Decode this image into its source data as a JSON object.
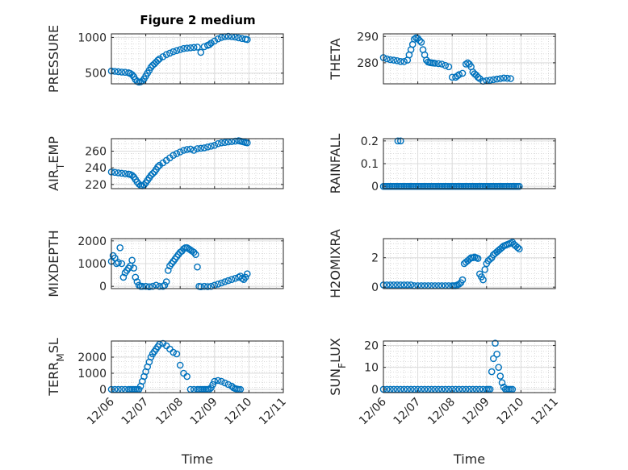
{
  "figure_title": "Figure 2 medium",
  "x_tick_labels": [
    "12/06",
    "12/07",
    "12/08",
    "12/09",
    "12/10",
    "12/11"
  ],
  "marker_color": "#0072BD",
  "chart_data": [
    {
      "type": "scatter",
      "title": "Figure 2 medium",
      "ylabel": "PRESSURE",
      "xlabel": "",
      "x_unit": "days",
      "xlim": [
        "12/06",
        "12/11"
      ],
      "ylim": [
        350,
        1050
      ],
      "yticks": [
        500,
        1000
      ],
      "ytick_labels": [
        "500",
        "1000"
      ],
      "grid": "on, minor dotted",
      "x": [
        0,
        0.1,
        0.2,
        0.3,
        0.4,
        0.5,
        0.55,
        0.6,
        0.65,
        0.7,
        0.75,
        0.8,
        0.85,
        0.9,
        0.95,
        1.0,
        1.05,
        1.1,
        1.15,
        1.2,
        1.25,
        1.3,
        1.35,
        1.4,
        1.5,
        1.6,
        1.7,
        1.8,
        1.9,
        2.0,
        2.1,
        2.2,
        2.3,
        2.4,
        2.5,
        2.6,
        2.7,
        2.8,
        2.85,
        2.9,
        3.0,
        3.1,
        3.2,
        3.3,
        3.4,
        3.5,
        3.6,
        3.7,
        3.8,
        3.9,
        3.95
      ],
      "y": [
        530,
        525,
        520,
        515,
        512,
        505,
        495,
        480,
        450,
        410,
        385,
        375,
        378,
        390,
        420,
        460,
        500,
        540,
        580,
        610,
        630,
        655,
        680,
        700,
        730,
        760,
        780,
        800,
        815,
        830,
        845,
        850,
        855,
        860,
        865,
        790,
        870,
        890,
        900,
        920,
        950,
        980,
        1000,
        1010,
        1015,
        1010,
        1005,
        995,
        985,
        975,
        970
      ]
    },
    {
      "type": "scatter",
      "ylabel": "THETA",
      "xlabel": "",
      "xlim": [
        "12/06",
        "12/11"
      ],
      "ylim": [
        272,
        291
      ],
      "yticks": [
        280,
        290
      ],
      "ytick_labels": [
        "280",
        "290"
      ],
      "grid": "on, minor dotted",
      "x": [
        0,
        0.1,
        0.2,
        0.3,
        0.4,
        0.5,
        0.6,
        0.7,
        0.75,
        0.8,
        0.85,
        0.9,
        0.95,
        1.0,
        1.05,
        1.1,
        1.15,
        1.2,
        1.25,
        1.3,
        1.35,
        1.4,
        1.45,
        1.5,
        1.6,
        1.7,
        1.8,
        1.9,
        2.0,
        2.1,
        2.15,
        2.2,
        2.3,
        2.4,
        2.45,
        2.5,
        2.55,
        2.6,
        2.65,
        2.7,
        2.75,
        2.8,
        2.9,
        3.0,
        3.1,
        3.2,
        3.3,
        3.4,
        3.5,
        3.6,
        3.7
      ],
      "y": [
        282,
        281.5,
        281.2,
        281,
        280.8,
        280.5,
        280.5,
        281,
        283,
        285,
        287,
        289,
        289.5,
        289.3,
        288.5,
        287.8,
        285,
        283,
        281,
        280.3,
        280.1,
        280,
        279.9,
        279.8,
        279.7,
        279.5,
        279,
        278.5,
        274.5,
        274.5,
        275,
        275.5,
        276,
        279.5,
        280,
        279.5,
        278.5,
        276.5,
        275.8,
        275.3,
        274.5,
        274,
        273,
        273.2,
        273.4,
        273.6,
        273.8,
        274,
        274.2,
        274.1,
        274
      ]
    },
    {
      "type": "scatter",
      "ylabel": "AIR_TEMP",
      "xlabel": "",
      "xlim": [
        "12/06",
        "12/11"
      ],
      "ylim": [
        215,
        275
      ],
      "yticks": [
        220,
        240,
        260
      ],
      "ytick_labels": [
        "220",
        "240",
        "260"
      ],
      "grid": "on, minor dotted",
      "x": [
        0,
        0.1,
        0.2,
        0.3,
        0.4,
        0.5,
        0.55,
        0.6,
        0.65,
        0.7,
        0.75,
        0.8,
        0.85,
        0.9,
        0.95,
        1.0,
        1.05,
        1.1,
        1.15,
        1.2,
        1.25,
        1.3,
        1.35,
        1.4,
        1.5,
        1.6,
        1.7,
        1.8,
        1.9,
        2.0,
        2.1,
        2.2,
        2.3,
        2.4,
        2.5,
        2.6,
        2.7,
        2.8,
        2.9,
        3.0,
        3.1,
        3.2,
        3.3,
        3.4,
        3.5,
        3.6,
        3.7,
        3.75,
        3.8,
        3.85,
        3.9,
        3.95
      ],
      "y": [
        235,
        234.5,
        234,
        233.5,
        233,
        232.5,
        232,
        231,
        229,
        226,
        223,
        220.5,
        219,
        218.5,
        219.5,
        222,
        225,
        228,
        231,
        233,
        235,
        238,
        241,
        243,
        246,
        249,
        252,
        255,
        257,
        259,
        261,
        262,
        262.5,
        261,
        263,
        263.5,
        264,
        265,
        266,
        267,
        269,
        270,
        270.5,
        271,
        271.5,
        272,
        272.5,
        272,
        271.5,
        271,
        270.5,
        270
      ]
    },
    {
      "type": "scatter",
      "ylabel": "RAINFALL",
      "xlabel": "",
      "xlim": [
        "12/06",
        "12/11"
      ],
      "ylim": [
        -0.01,
        0.21
      ],
      "yticks": [
        0,
        0.1,
        0.2
      ],
      "ytick_labels": [
        "0",
        "0.1",
        "0.2"
      ],
      "grid": "on, minor dotted",
      "x": [
        0,
        0.05,
        0.1,
        0.15,
        0.2,
        0.25,
        0.3,
        0.35,
        0.4,
        0.45,
        0.5,
        0.55,
        0.6,
        0.65,
        0.7,
        0.75,
        0.8,
        0.85,
        0.9,
        0.95,
        1.0,
        1.05,
        1.1,
        1.15,
        1.2,
        1.25,
        1.3,
        1.35,
        1.4,
        1.45,
        1.5,
        1.55,
        1.6,
        1.65,
        1.7,
        1.75,
        1.8,
        1.85,
        1.9,
        1.95,
        2.0,
        2.05,
        2.1,
        2.15,
        2.2,
        2.25,
        2.3,
        2.35,
        2.4,
        2.45,
        2.5,
        2.55,
        2.6,
        2.65,
        2.7,
        2.75,
        2.8,
        2.85,
        2.9,
        2.95,
        3.0,
        3.05,
        3.1,
        3.15,
        3.2,
        3.25,
        3.3,
        3.35,
        3.4,
        3.45,
        3.5,
        3.55,
        3.6,
        3.65,
        3.7,
        3.75,
        3.8,
        3.85,
        3.9,
        3.95,
        0.42,
        0.5
      ],
      "y": [
        0,
        0,
        0,
        0,
        0,
        0,
        0,
        0,
        0,
        0,
        0,
        0,
        0,
        0,
        0,
        0,
        0,
        0,
        0,
        0,
        0,
        0,
        0,
        0,
        0,
        0,
        0,
        0,
        0,
        0,
        0,
        0,
        0,
        0,
        0,
        0,
        0,
        0,
        0,
        0,
        0,
        0,
        0,
        0,
        0,
        0,
        0,
        0,
        0,
        0,
        0,
        0,
        0,
        0,
        0,
        0,
        0,
        0,
        0,
        0,
        0,
        0,
        0,
        0,
        0,
        0,
        0,
        0,
        0,
        0,
        0,
        0,
        0,
        0,
        0,
        0,
        0,
        0,
        0,
        0,
        0.2,
        0.2
      ]
    },
    {
      "type": "scatter",
      "ylabel": "MIXDEPTH",
      "xlabel": "",
      "xlim": [
        "12/06",
        "12/11"
      ],
      "ylim": [
        -100,
        2100
      ],
      "yticks": [
        0,
        1000,
        2000
      ],
      "ytick_labels": [
        "0",
        "1000",
        "2000"
      ],
      "grid": "on, minor dotted",
      "x": [
        0,
        0.05,
        0.1,
        0.15,
        0.2,
        0.25,
        0.3,
        0.35,
        0.4,
        0.45,
        0.5,
        0.55,
        0.6,
        0.65,
        0.7,
        0.75,
        0.8,
        0.85,
        0.9,
        1.0,
        1.1,
        1.2,
        1.3,
        1.4,
        1.5,
        1.55,
        1.6,
        1.65,
        1.7,
        1.75,
        1.8,
        1.85,
        1.9,
        1.95,
        2.0,
        2.05,
        2.1,
        2.15,
        2.2,
        2.25,
        2.3,
        2.35,
        2.4,
        2.45,
        2.5,
        2.55,
        2.6,
        2.7,
        2.8,
        2.9,
        3.0,
        3.1,
        3.2,
        3.3,
        3.4,
        3.5,
        3.6,
        3.7,
        3.75,
        3.8,
        3.85,
        3.9,
        3.95
      ],
      "y": [
        1100,
        1350,
        1250,
        1000,
        1050,
        1700,
        1000,
        400,
        600,
        700,
        800,
        900,
        1150,
        800,
        400,
        200,
        50,
        0,
        0,
        0,
        -20,
        0,
        50,
        0,
        0,
        50,
        200,
        700,
        900,
        1000,
        1100,
        1200,
        1300,
        1400,
        1500,
        1550,
        1650,
        1700,
        1700,
        1650,
        1600,
        1550,
        1500,
        1400,
        850,
        0,
        -20,
        0,
        -10,
        0,
        50,
        100,
        150,
        200,
        250,
        300,
        350,
        400,
        450,
        350,
        300,
        400,
        550
      ]
    },
    {
      "type": "scatter",
      "ylabel": "H2OMIXRA",
      "xlabel": "",
      "xlim": [
        "12/06",
        "12/11"
      ],
      "ylim": [
        -0.1,
        3.3
      ],
      "yticks": [
        0,
        2
      ],
      "ytick_labels": [
        "0",
        "2"
      ],
      "grid": "on, minor dotted",
      "x": [
        0,
        0.1,
        0.2,
        0.3,
        0.4,
        0.5,
        0.6,
        0.7,
        0.8,
        0.9,
        1.0,
        1.1,
        1.2,
        1.3,
        1.4,
        1.5,
        1.6,
        1.7,
        1.8,
        1.9,
        2.0,
        2.05,
        2.1,
        2.15,
        2.2,
        2.25,
        2.3,
        2.35,
        2.4,
        2.45,
        2.5,
        2.55,
        2.6,
        2.65,
        2.7,
        2.75,
        2.8,
        2.85,
        2.9,
        2.95,
        3.0,
        3.05,
        3.1,
        3.15,
        3.2,
        3.25,
        3.3,
        3.35,
        3.4,
        3.45,
        3.5,
        3.55,
        3.6,
        3.65,
        3.7,
        3.75,
        3.8,
        3.85,
        3.9,
        3.95
      ],
      "y": [
        0.15,
        0.15,
        0.15,
        0.15,
        0.15,
        0.15,
        0.15,
        0.15,
        0.15,
        0.1,
        0.1,
        0.1,
        0.1,
        0.1,
        0.1,
        0.1,
        0.1,
        0.1,
        0.1,
        0.1,
        0.1,
        0.1,
        0.1,
        0.15,
        0.2,
        0.3,
        0.5,
        1.6,
        1.7,
        1.8,
        1.9,
        2.0,
        2.0,
        2.05,
        2.0,
        1.95,
        0.9,
        0.7,
        0.5,
        1.2,
        1.6,
        1.8,
        1.9,
        2.0,
        2.2,
        2.3,
        2.4,
        2.5,
        2.6,
        2.7,
        2.8,
        2.85,
        2.9,
        2.95,
        3.0,
        3.05,
        2.9,
        2.8,
        2.7,
        2.6
      ]
    },
    {
      "type": "scatter",
      "ylabel": "TERR_MSL",
      "xlabel": "Time",
      "xlim": [
        "12/06",
        "12/11"
      ],
      "ylim": [
        -200,
        3000
      ],
      "yticks": [
        0,
        1000,
        2000
      ],
      "ytick_labels": [
        "0",
        "1000",
        "2000"
      ],
      "grid": "on, minor dotted",
      "x": [
        0,
        0.1,
        0.2,
        0.3,
        0.4,
        0.5,
        0.55,
        0.6,
        0.65,
        0.7,
        0.75,
        0.8,
        0.85,
        0.9,
        0.95,
        1.0,
        1.05,
        1.1,
        1.15,
        1.2,
        1.25,
        1.3,
        1.35,
        1.4,
        1.5,
        1.6,
        1.7,
        1.8,
        1.9,
        2.0,
        2.1,
        2.2,
        2.3,
        2.4,
        2.5,
        2.55,
        2.6,
        2.65,
        2.7,
        2.75,
        2.8,
        2.85,
        2.9,
        2.95,
        3.0,
        3.1,
        3.2,
        3.3,
        3.4,
        3.5,
        3.55,
        3.6,
        3.65,
        3.7,
        3.75
      ],
      "y": [
        0,
        0,
        0,
        0,
        0,
        0,
        0,
        0,
        0,
        0,
        0,
        0,
        200,
        500,
        800,
        1100,
        1400,
        1700,
        2000,
        2200,
        2350,
        2500,
        2650,
        2800,
        2850,
        2700,
        2500,
        2300,
        2200,
        1500,
        1000,
        800,
        0,
        0,
        0,
        0,
        0,
        0,
        0,
        0,
        0,
        0,
        100,
        300,
        500,
        550,
        500,
        400,
        300,
        200,
        100,
        50,
        20,
        0,
        0
      ]
    },
    {
      "type": "scatter",
      "ylabel": "SUN_FLUX",
      "xlabel": "Time",
      "xlim": [
        "12/06",
        "12/11"
      ],
      "ylim": [
        -1.5,
        22
      ],
      "yticks": [
        0,
        10,
        20
      ],
      "ytick_labels": [
        "0",
        "10",
        "20"
      ],
      "grid": "on, minor dotted",
      "x": [
        0,
        0.1,
        0.2,
        0.3,
        0.4,
        0.5,
        0.6,
        0.7,
        0.8,
        0.9,
        1.0,
        1.1,
        1.2,
        1.3,
        1.4,
        1.5,
        1.6,
        1.7,
        1.8,
        1.9,
        2.0,
        2.1,
        2.2,
        2.3,
        2.4,
        2.5,
        2.6,
        2.7,
        2.8,
        2.9,
        3.0,
        3.05,
        3.1,
        3.15,
        3.2,
        3.25,
        3.3,
        3.35,
        3.4,
        3.45,
        3.5,
        3.55,
        3.6,
        3.65,
        3.7,
        3.75
      ],
      "y": [
        0,
        0,
        0,
        0,
        0,
        0,
        0,
        0,
        0,
        0,
        0,
        0,
        0,
        0,
        0,
        0,
        0,
        0,
        0,
        0,
        0,
        0,
        0,
        0,
        0,
        0,
        0,
        0,
        0,
        0,
        0,
        0,
        0,
        8,
        14,
        21,
        16,
        10,
        6,
        3,
        1,
        0,
        0,
        0,
        0,
        0
      ]
    }
  ]
}
